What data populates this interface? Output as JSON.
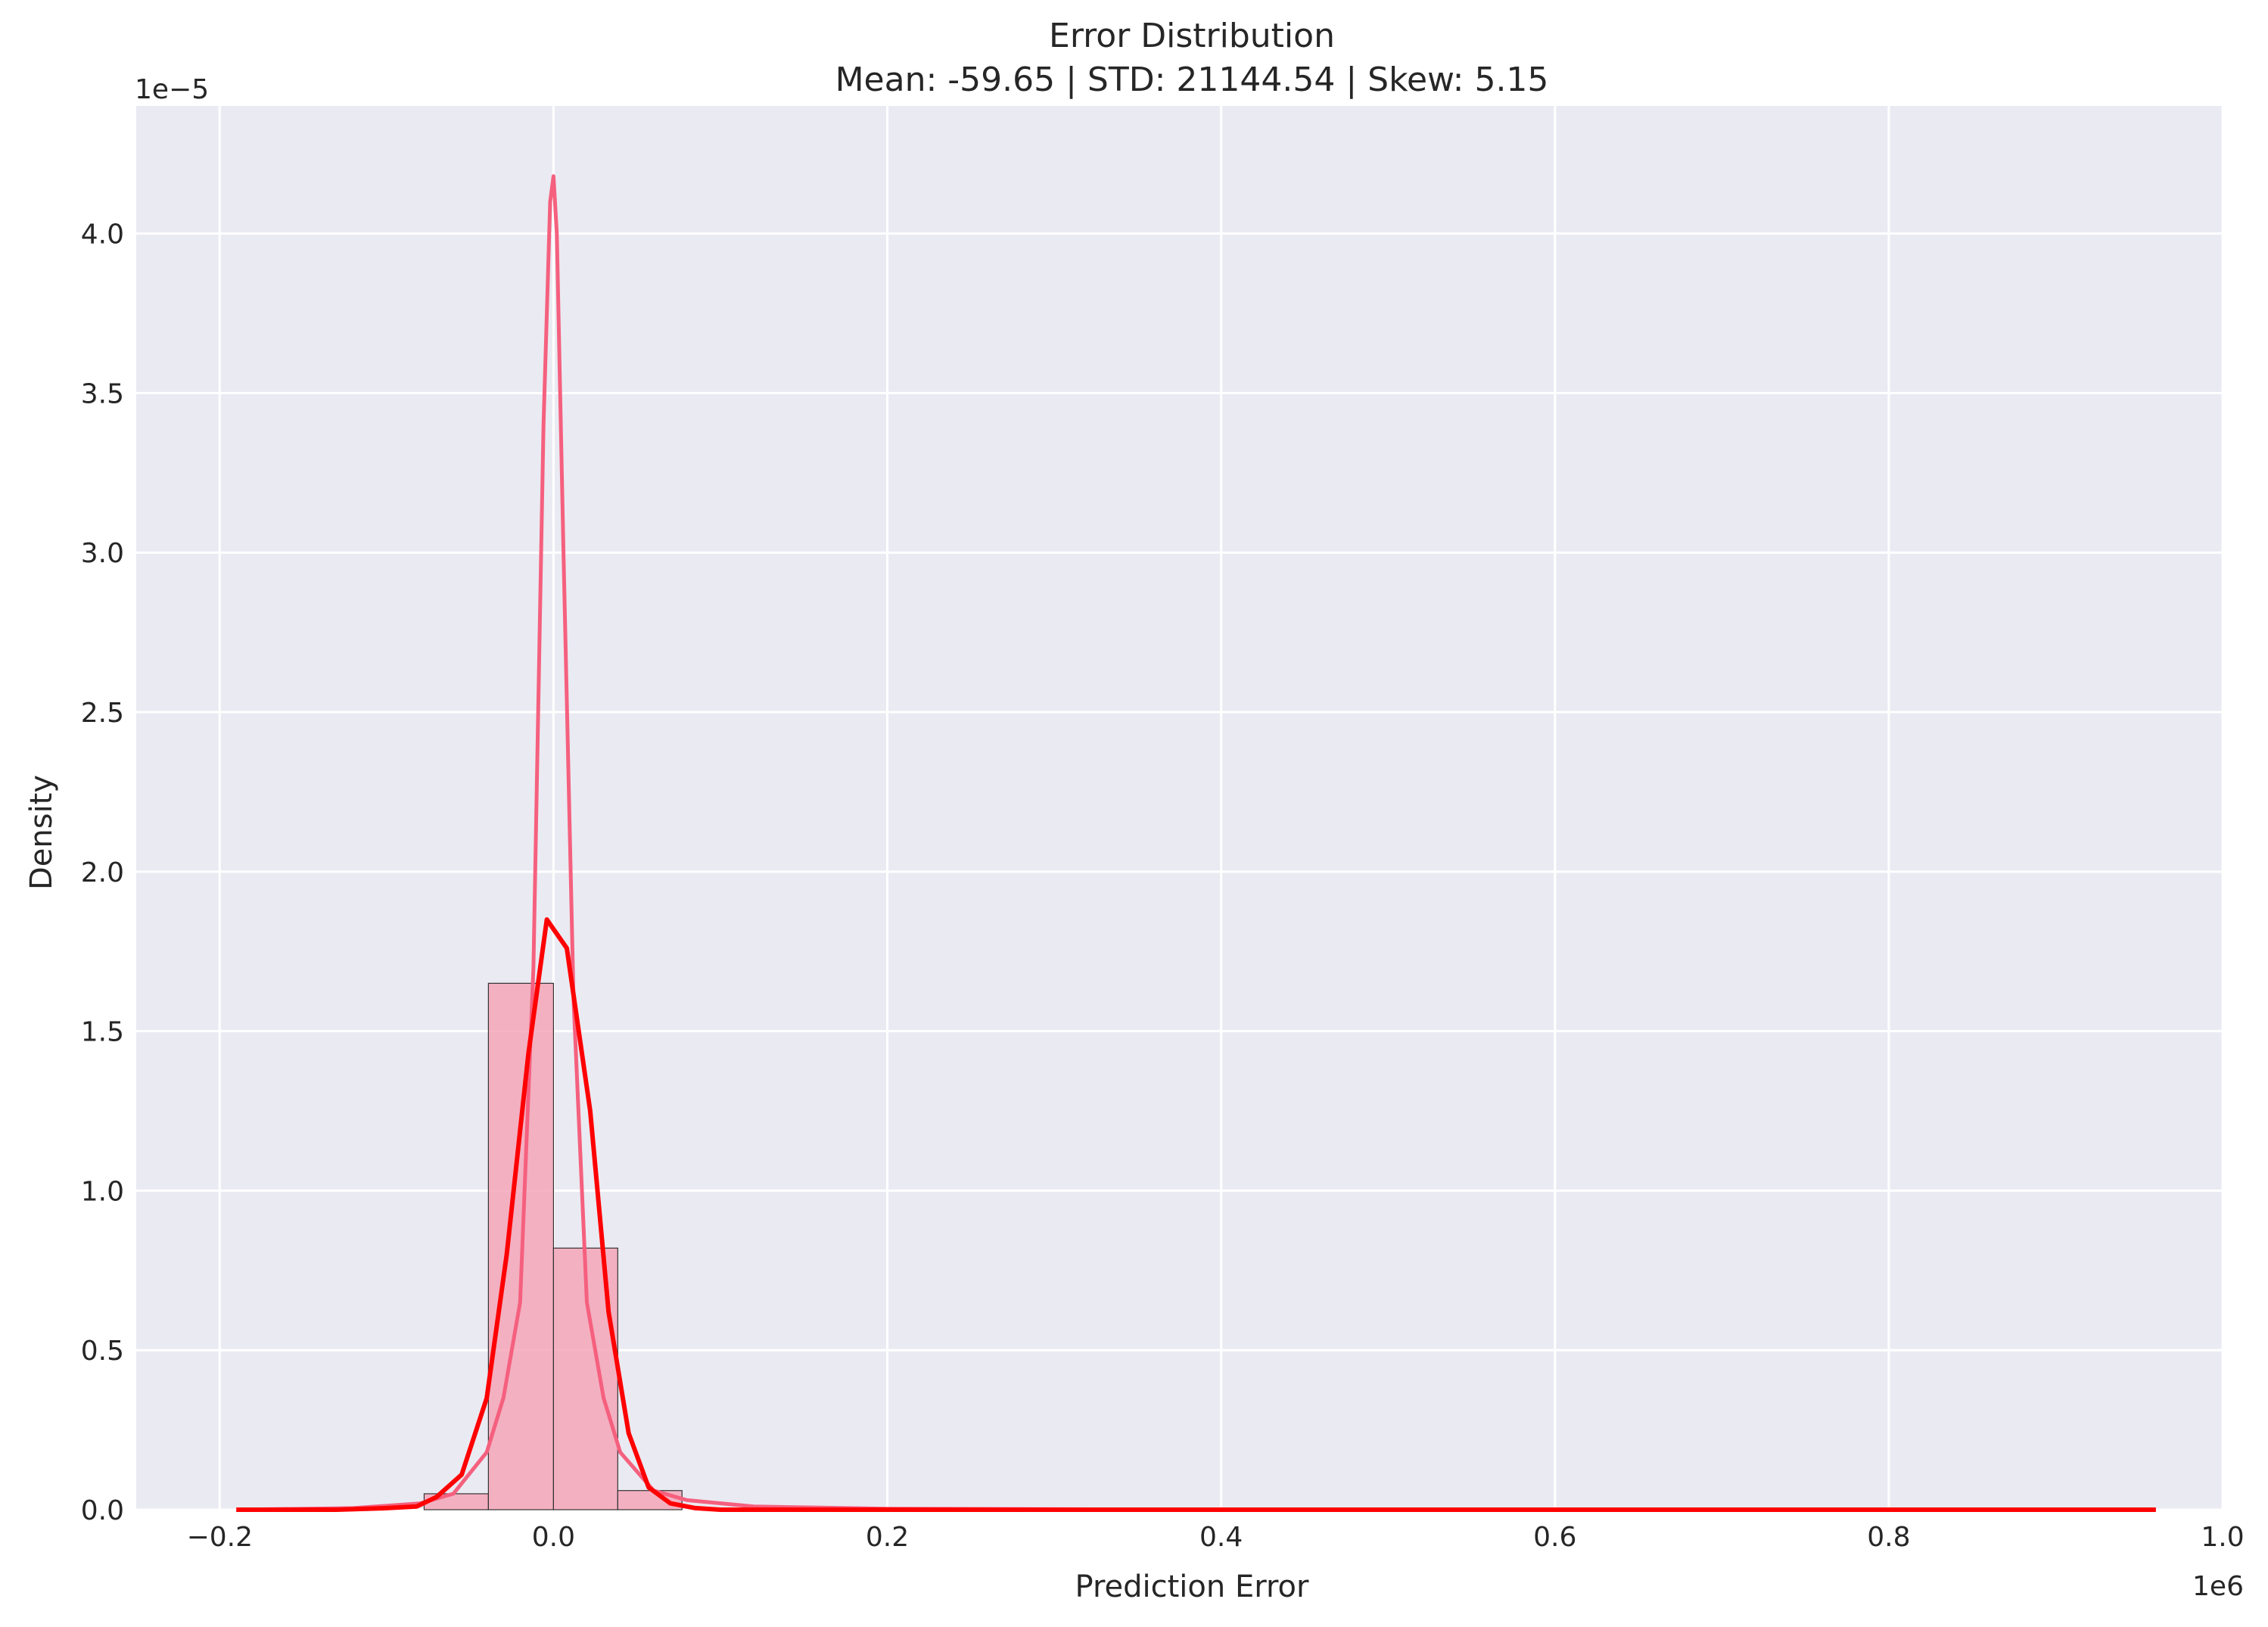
{
  "chart_data": {
    "type": "bar",
    "title": "Error Distribution",
    "subtitle": "Mean: -59.65 | STD: 21144.54 | Skew: 5.15",
    "xlabel": "Prediction Error",
    "ylabel": "Density",
    "x_offset_label": "1e6",
    "y_offset_label": "1e−5",
    "xlim": [
      -0.25,
      1.0
    ],
    "ylim": [
      0,
      4.4
    ],
    "x_ticks": [
      -0.2,
      0.0,
      0.2,
      0.4,
      0.6,
      0.8,
      1.0
    ],
    "x_tick_labels": [
      "−0.2",
      "0.0",
      "0.2",
      "0.4",
      "0.6",
      "0.8",
      "1.0"
    ],
    "y_ticks": [
      0.0,
      0.5,
      1.0,
      1.5,
      2.0,
      2.5,
      3.0,
      3.5,
      4.0
    ],
    "y_tick_labels": [
      "0.0",
      "0.5",
      "1.0",
      "1.5",
      "2.0",
      "2.5",
      "3.0",
      "3.5",
      "4.0"
    ],
    "grid": true,
    "background_color": "#eaeaf2",
    "histogram": {
      "name": "Histogram",
      "color": "#f4a6b8",
      "edge_color": "#333333",
      "bin_edges": [
        -0.0775,
        -0.039,
        0.0,
        0.0385,
        0.077
      ],
      "values": [
        0.05,
        1.65,
        0.82,
        0.06
      ]
    },
    "series": [
      {
        "type": "line",
        "color": "#f5607e",
        "x": [
          -0.19,
          -0.12,
          -0.08,
          -0.06,
          -0.04,
          -0.03,
          -0.02,
          -0.012,
          -0.006,
          -0.002,
          0.0,
          0.002,
          0.006,
          0.012,
          0.02,
          0.03,
          0.04,
          0.06,
          0.08,
          0.12,
          0.2,
          0.4,
          0.6,
          0.8,
          0.96
        ],
        "y": [
          0.0,
          0.005,
          0.02,
          0.05,
          0.18,
          0.35,
          0.65,
          1.7,
          3.4,
          4.1,
          4.18,
          4.0,
          3.0,
          1.6,
          0.65,
          0.35,
          0.18,
          0.06,
          0.03,
          0.01,
          0.003,
          0.0,
          0.0,
          0.0,
          0.0
        ]
      },
      {
        "type": "line",
        "color": "#ff0000",
        "x": [
          -0.19,
          -0.13,
          -0.1,
          -0.082,
          -0.07,
          -0.055,
          -0.04,
          -0.028,
          -0.015,
          -0.004,
          0.008,
          0.022,
          0.033,
          0.045,
          0.057,
          0.07,
          0.085,
          0.1,
          0.14,
          0.2,
          0.4,
          0.6,
          0.8,
          0.96
        ],
        "y": [
          0.0,
          0.0,
          0.005,
          0.01,
          0.04,
          0.11,
          0.35,
          0.8,
          1.43,
          1.85,
          1.76,
          1.25,
          0.62,
          0.24,
          0.07,
          0.02,
          0.005,
          0.0,
          0.0,
          0.0,
          0.0,
          0.0,
          0.0,
          0.0
        ]
      }
    ]
  }
}
